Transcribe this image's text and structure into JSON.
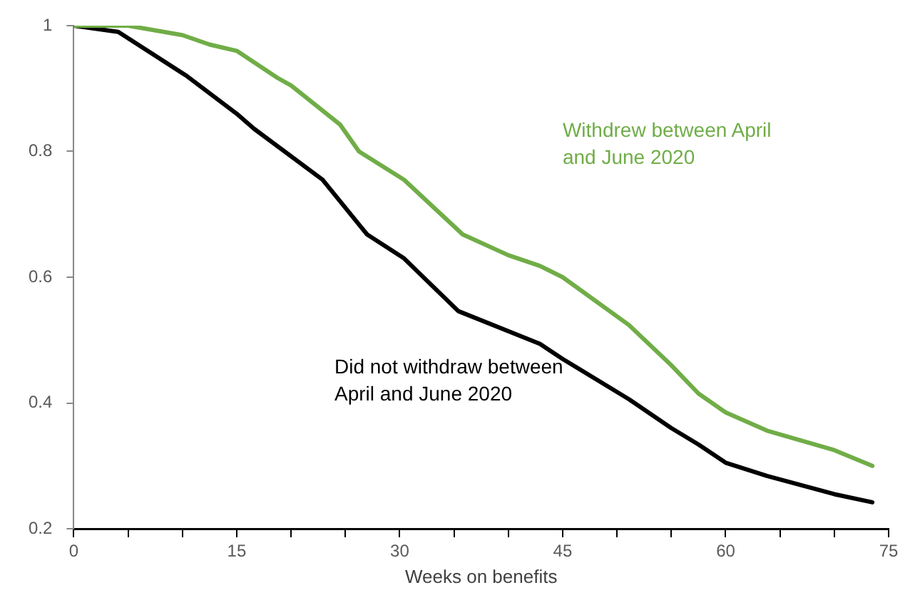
{
  "chart_data": {
    "type": "line",
    "xlabel": "Weeks on benefits",
    "xlim": [
      0,
      75
    ],
    "xticks": [
      0,
      {
        "value": 5,
        "label": null
      },
      {
        "value": 10,
        "label": null
      },
      15,
      {
        "value": 20,
        "label": null
      },
      {
        "value": 25,
        "label": null
      },
      30,
      {
        "value": 35,
        "label": null
      },
      {
        "value": 40,
        "label": null
      },
      45,
      {
        "value": 50,
        "label": null
      },
      {
        "value": 55,
        "label": null
      },
      60,
      {
        "value": 65,
        "label": null
      },
      {
        "value": 70,
        "label": null
      },
      75
    ],
    "ylim": [
      0.2,
      1
    ],
    "yticks": [
      0.2,
      0.4,
      0.6,
      0.8,
      1
    ],
    "grid": false,
    "legend": false,
    "marker": "none",
    "line_style": "solid",
    "series": [
      {
        "name": "Withdrew between April and June 2020",
        "color": "#70ad47",
        "x": [
          0,
          5,
          10,
          12.5,
          15,
          18.75,
          20,
          24.5,
          26.25,
          30.4,
          35.8,
          40,
          42.9,
          45,
          51.1,
          55,
          57.5,
          60,
          63.8,
          70,
          73.5
        ],
        "values": [
          1,
          1,
          0.985,
          0.97,
          0.96,
          0.917,
          0.905,
          0.843,
          0.8,
          0.755,
          0.668,
          0.635,
          0.618,
          0.6,
          0.524,
          0.46,
          0.415,
          0.385,
          0.356,
          0.325,
          0.3
        ]
      },
      {
        "name": "Did not withdraw between April and June 2020",
        "color": "#000000",
        "x": [
          0,
          4.1,
          10.4,
          15,
          16.6,
          22.9,
          27,
          30.4,
          35.4,
          42.9,
          45,
          51.1,
          55,
          57.5,
          60,
          63.8,
          70,
          73.5
        ],
        "values": [
          1,
          0.99,
          0.92,
          0.86,
          0.836,
          0.755,
          0.668,
          0.63,
          0.546,
          0.494,
          0.47,
          0.406,
          0.36,
          0.334,
          0.305,
          0.284,
          0.255,
          0.242
        ]
      }
    ]
  }
}
